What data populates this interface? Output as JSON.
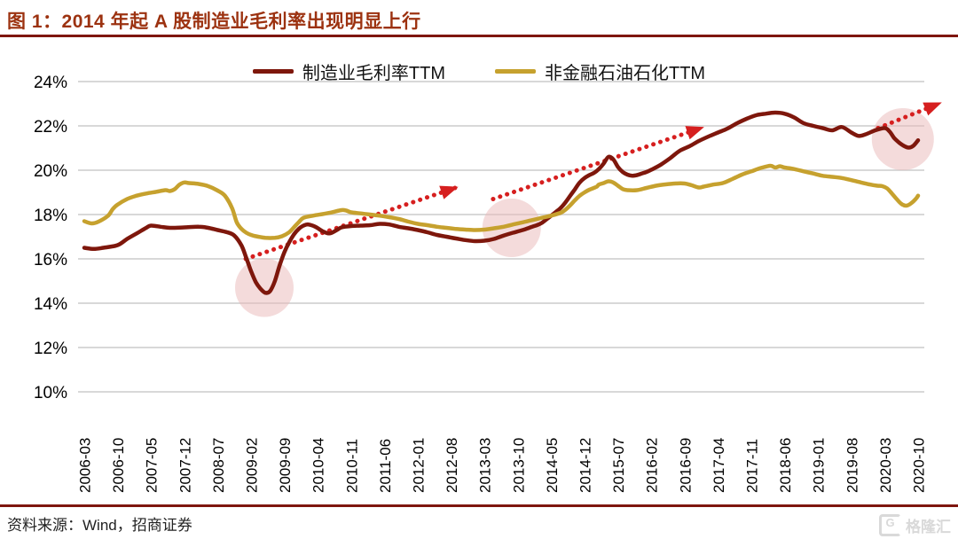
{
  "header": {
    "title": "图 1：2014 年起 A 股制造业毛利率出现明显上行"
  },
  "footer": {
    "source_label": "资料来源：Wind，招商证券",
    "watermark_glyph": "G",
    "watermark_text": "格隆汇"
  },
  "colors": {
    "title_red": "#9C3210",
    "rule_red": "#7E150F",
    "grid_gray": "#D8D8D8",
    "arrow_red": "#D61F1F",
    "highlight_pink": "#E9B7B7",
    "axis_text": "#000000"
  },
  "chart_data": {
    "type": "line",
    "title": "2014 年起 A 股制造业毛利率出现明显上行",
    "grid": true,
    "legend_position": "top-center",
    "ylim": [
      10,
      24
    ],
    "y_axis": {
      "ticks": [
        24,
        22,
        20,
        18,
        16,
        14,
        12,
        10
      ],
      "tick_labels": [
        "24%",
        "22%",
        "20%",
        "18%",
        "16%",
        "14%",
        "12%",
        "10%"
      ]
    },
    "x_axis": {
      "unit": "months since 2006-03",
      "tick_step_months": 7,
      "range_months": [
        0,
        175
      ],
      "tick_labels": [
        "2006-03",
        "2006-10",
        "2007-05",
        "2007-12",
        "2008-07",
        "2009-02",
        "2009-09",
        "2010-04",
        "2010-11",
        "2011-06",
        "2012-01",
        "2012-08",
        "2013-03",
        "2013-10",
        "2014-05",
        "2014-12",
        "2015-07",
        "2016-02",
        "2016-09",
        "2017-04",
        "2017-11",
        "2018-06",
        "2019-01",
        "2019-08",
        "2020-03",
        "2020-10"
      ]
    },
    "series": [
      {
        "name": "制造业毛利率TTM",
        "color": "#7E170C",
        "width": 4.5,
        "points": [
          [
            0,
            16.5
          ],
          [
            2,
            16.45
          ],
          [
            4,
            16.5
          ],
          [
            7,
            16.62
          ],
          [
            9,
            16.9
          ],
          [
            11,
            17.15
          ],
          [
            13,
            17.4
          ],
          [
            14,
            17.5
          ],
          [
            16,
            17.45
          ],
          [
            18,
            17.4
          ],
          [
            21,
            17.42
          ],
          [
            24,
            17.45
          ],
          [
            26,
            17.4
          ],
          [
            28,
            17.3
          ],
          [
            30,
            17.2
          ],
          [
            31.5,
            17.05
          ],
          [
            33,
            16.6
          ],
          [
            34,
            16.05
          ],
          [
            35,
            15.45
          ],
          [
            36,
            14.95
          ],
          [
            37,
            14.65
          ],
          [
            38,
            14.47
          ],
          [
            39,
            14.55
          ],
          [
            40,
            15.0
          ],
          [
            41,
            15.7
          ],
          [
            42,
            16.3
          ],
          [
            43,
            16.75
          ],
          [
            44,
            17.1
          ],
          [
            45,
            17.35
          ],
          [
            46,
            17.5
          ],
          [
            47,
            17.55
          ],
          [
            48.5,
            17.45
          ],
          [
            50,
            17.25
          ],
          [
            51.5,
            17.15
          ],
          [
            53,
            17.3
          ],
          [
            54,
            17.42
          ],
          [
            56,
            17.48
          ],
          [
            58,
            17.5
          ],
          [
            60,
            17.52
          ],
          [
            62,
            17.58
          ],
          [
            64,
            17.55
          ],
          [
            66,
            17.45
          ],
          [
            68,
            17.38
          ],
          [
            70,
            17.3
          ],
          [
            72,
            17.2
          ],
          [
            74,
            17.08
          ],
          [
            76,
            17.0
          ],
          [
            78,
            16.92
          ],
          [
            80,
            16.85
          ],
          [
            82,
            16.8
          ],
          [
            84,
            16.82
          ],
          [
            86,
            16.9
          ],
          [
            88,
            17.05
          ],
          [
            90,
            17.18
          ],
          [
            92,
            17.3
          ],
          [
            94,
            17.45
          ],
          [
            95,
            17.52
          ],
          [
            96,
            17.62
          ],
          [
            97,
            17.78
          ],
          [
            98,
            17.95
          ],
          [
            99,
            18.12
          ],
          [
            100,
            18.3
          ],
          [
            101,
            18.55
          ],
          [
            102,
            18.85
          ],
          [
            103,
            19.15
          ],
          [
            104,
            19.45
          ],
          [
            105,
            19.65
          ],
          [
            106,
            19.78
          ],
          [
            107,
            19.88
          ],
          [
            108,
            20.05
          ],
          [
            109,
            20.3
          ],
          [
            110,
            20.6
          ],
          [
            111,
            20.5
          ],
          [
            112,
            20.15
          ],
          [
            113,
            19.92
          ],
          [
            114,
            19.8
          ],
          [
            115,
            19.75
          ],
          [
            116,
            19.78
          ],
          [
            117,
            19.85
          ],
          [
            118,
            19.92
          ],
          [
            119,
            20.02
          ],
          [
            121,
            20.25
          ],
          [
            123,
            20.55
          ],
          [
            125,
            20.88
          ],
          [
            127,
            21.08
          ],
          [
            129,
            21.32
          ],
          [
            131,
            21.52
          ],
          [
            133,
            21.7
          ],
          [
            135,
            21.88
          ],
          [
            137,
            22.12
          ],
          [
            139,
            22.32
          ],
          [
            141,
            22.48
          ],
          [
            143,
            22.55
          ],
          [
            145,
            22.6
          ],
          [
            147,
            22.55
          ],
          [
            149,
            22.38
          ],
          [
            151,
            22.12
          ],
          [
            153,
            22.0
          ],
          [
            155,
            21.9
          ],
          [
            157,
            21.8
          ],
          [
            159,
            21.95
          ],
          [
            161,
            21.7
          ],
          [
            162.5,
            21.55
          ],
          [
            164,
            21.62
          ],
          [
            166,
            21.8
          ],
          [
            168,
            21.9
          ],
          [
            169,
            21.75
          ],
          [
            170,
            21.45
          ],
          [
            171,
            21.25
          ],
          [
            172,
            21.1
          ],
          [
            173,
            21.02
          ],
          [
            174,
            21.1
          ],
          [
            175,
            21.35
          ]
        ]
      },
      {
        "name": "非金融石油石化TTM",
        "color": "#C6A12E",
        "width": 4.5,
        "points": [
          [
            0,
            17.7
          ],
          [
            1.5,
            17.6
          ],
          [
            3,
            17.68
          ],
          [
            5,
            17.95
          ],
          [
            6,
            18.25
          ],
          [
            7,
            18.45
          ],
          [
            9,
            18.7
          ],
          [
            11,
            18.85
          ],
          [
            13,
            18.95
          ],
          [
            15,
            19.02
          ],
          [
            17,
            19.1
          ],
          [
            18,
            19.06
          ],
          [
            19,
            19.15
          ],
          [
            20,
            19.35
          ],
          [
            21,
            19.45
          ],
          [
            22,
            19.42
          ],
          [
            24,
            19.38
          ],
          [
            26,
            19.28
          ],
          [
            28,
            19.08
          ],
          [
            29.5,
            18.85
          ],
          [
            31,
            18.3
          ],
          [
            32,
            17.65
          ],
          [
            33,
            17.35
          ],
          [
            34,
            17.18
          ],
          [
            35,
            17.08
          ],
          [
            36.5,
            17.0
          ],
          [
            38,
            16.95
          ],
          [
            40,
            16.95
          ],
          [
            41.5,
            17.02
          ],
          [
            43,
            17.2
          ],
          [
            44,
            17.42
          ],
          [
            45,
            17.65
          ],
          [
            46,
            17.85
          ],
          [
            48,
            17.95
          ],
          [
            50,
            18.02
          ],
          [
            52,
            18.1
          ],
          [
            54,
            18.2
          ],
          [
            55,
            18.18
          ],
          [
            56,
            18.1
          ],
          [
            58,
            18.05
          ],
          [
            60,
            18.0
          ],
          [
            62,
            17.95
          ],
          [
            64,
            17.88
          ],
          [
            66,
            17.8
          ],
          [
            68,
            17.68
          ],
          [
            70,
            17.58
          ],
          [
            72,
            17.52
          ],
          [
            74,
            17.45
          ],
          [
            76,
            17.4
          ],
          [
            78,
            17.35
          ],
          [
            80,
            17.32
          ],
          [
            82,
            17.3
          ],
          [
            84,
            17.32
          ],
          [
            86,
            17.38
          ],
          [
            88,
            17.45
          ],
          [
            90,
            17.55
          ],
          [
            92,
            17.65
          ],
          [
            94,
            17.75
          ],
          [
            96,
            17.85
          ],
          [
            98,
            17.95
          ],
          [
            100,
            18.08
          ],
          [
            101,
            18.22
          ],
          [
            102,
            18.42
          ],
          [
            103,
            18.65
          ],
          [
            104,
            18.85
          ],
          [
            105,
            19.0
          ],
          [
            106,
            19.12
          ],
          [
            107.5,
            19.25
          ],
          [
            108,
            19.35
          ],
          [
            109,
            19.42
          ],
          [
            110,
            19.5
          ],
          [
            111,
            19.45
          ],
          [
            112,
            19.3
          ],
          [
            113,
            19.15
          ],
          [
            114,
            19.1
          ],
          [
            116,
            19.1
          ],
          [
            118,
            19.2
          ],
          [
            120,
            19.3
          ],
          [
            122,
            19.36
          ],
          [
            124,
            19.4
          ],
          [
            126,
            19.4
          ],
          [
            127.5,
            19.32
          ],
          [
            129,
            19.22
          ],
          [
            130,
            19.26
          ],
          [
            132,
            19.35
          ],
          [
            134,
            19.42
          ],
          [
            136,
            19.6
          ],
          [
            138,
            19.8
          ],
          [
            140,
            19.95
          ],
          [
            142,
            20.1
          ],
          [
            144,
            20.2
          ],
          [
            145,
            20.12
          ],
          [
            146,
            20.18
          ],
          [
            147,
            20.12
          ],
          [
            149,
            20.05
          ],
          [
            151,
            19.95
          ],
          [
            153,
            19.85
          ],
          [
            155,
            19.75
          ],
          [
            157,
            19.7
          ],
          [
            159,
            19.65
          ],
          [
            161,
            19.55
          ],
          [
            163,
            19.45
          ],
          [
            165,
            19.35
          ],
          [
            166.5,
            19.3
          ],
          [
            167.5,
            19.28
          ],
          [
            168.5,
            19.18
          ],
          [
            169.5,
            18.95
          ],
          [
            170.5,
            18.7
          ],
          [
            171.5,
            18.48
          ],
          [
            172.5,
            18.4
          ],
          [
            173.5,
            18.5
          ],
          [
            174.5,
            18.7
          ],
          [
            175,
            18.85
          ]
        ]
      }
    ],
    "annotations": {
      "arrow_color": "#D61F1F",
      "trend_arrows": [
        {
          "from": [
            33.9,
            16.0
          ],
          "to": [
            77.8,
            19.2
          ]
        },
        {
          "from": [
            85.8,
            18.7
          ],
          "to": [
            129.4,
            21.9
          ]
        },
        {
          "from": [
            166.6,
            21.9
          ],
          "to": [
            179.3,
            23.0
          ]
        }
      ],
      "highlight_color": "#E9B7B7",
      "highlight_circles": [
        {
          "m": 37.8,
          "pct": 14.7,
          "r": 33
        },
        {
          "m": 89.7,
          "pct": 17.4,
          "r": 33
        },
        {
          "m": 171.8,
          "pct": 21.4,
          "r": 35
        }
      ]
    }
  }
}
